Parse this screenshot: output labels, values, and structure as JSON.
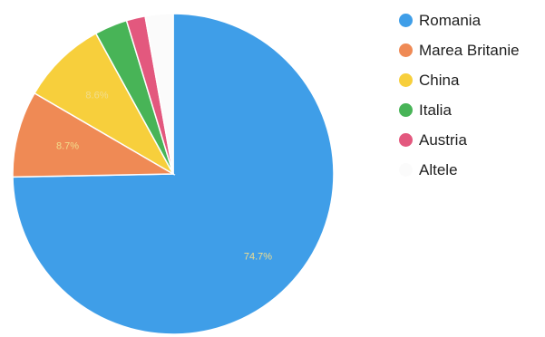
{
  "chart_data": {
    "type": "pie",
    "title": "",
    "categories": [
      "Romania",
      "Marea Britanie",
      "China",
      "Italia",
      "Austria",
      "Altele"
    ],
    "values": [
      74.7,
      8.7,
      8.6,
      3.3,
      1.9,
      2.8
    ],
    "value_labels": [
      "74.7%",
      "8.7%",
      "8.6%",
      "",
      "",
      ""
    ],
    "colors": [
      "#3f9ee8",
      "#ef8a55",
      "#f7cf3c",
      "#48b457",
      "#e3587e",
      "#fbfbfb"
    ],
    "start_angle_deg": 0,
    "direction": "clockwise",
    "legend_position": "right"
  },
  "legend": {
    "items": [
      {
        "label": "Romania",
        "color": "#3f9ee8"
      },
      {
        "label": "Marea Britanie",
        "color": "#ef8a55"
      },
      {
        "label": "China",
        "color": "#f7cf3c"
      },
      {
        "label": "Italia",
        "color": "#48b457"
      },
      {
        "label": "Austria",
        "color": "#e3587e"
      },
      {
        "label": "Altele",
        "color": "#fbfbfb"
      }
    ]
  }
}
